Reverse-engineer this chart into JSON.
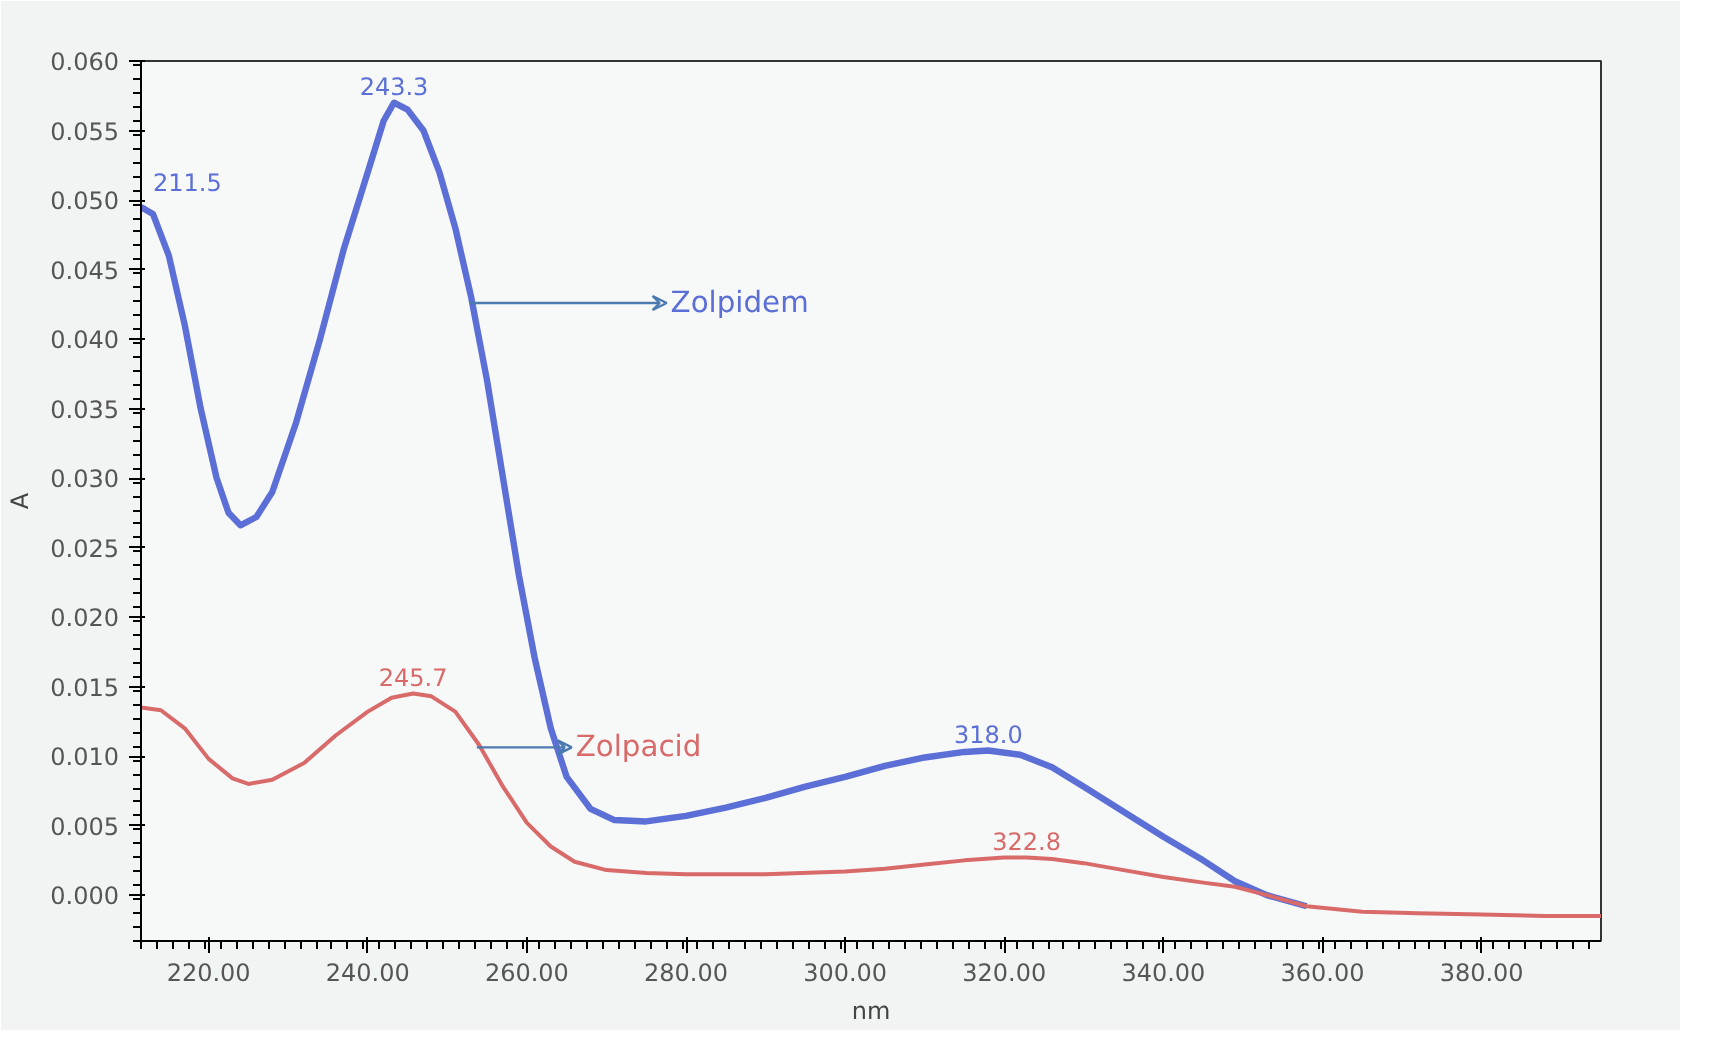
{
  "chart_data": {
    "type": "line",
    "xlabel": "nm",
    "ylabel": "A",
    "xlim": [
      211.5,
      395
    ],
    "ylim": [
      -0.0033,
      0.06
    ],
    "xticks": [
      {
        "value": 220,
        "label": "220.00"
      },
      {
        "value": 240,
        "label": "240.00"
      },
      {
        "value": 260,
        "label": "260.00"
      },
      {
        "value": 280,
        "label": "280.00"
      },
      {
        "value": 300,
        "label": "300.00"
      },
      {
        "value": 320,
        "label": "320.00"
      },
      {
        "value": 340,
        "label": "340.00"
      },
      {
        "value": 360,
        "label": "360.00"
      },
      {
        "value": 380,
        "label": "380.00"
      }
    ],
    "yticks": [
      {
        "value": 0,
        "label": "0.000"
      },
      {
        "value": 0.005,
        "label": "0.005"
      },
      {
        "value": 0.01,
        "label": "0.010"
      },
      {
        "value": 0.015,
        "label": "0.015"
      },
      {
        "value": 0.02,
        "label": "0.020"
      },
      {
        "value": 0.025,
        "label": "0.025"
      },
      {
        "value": 0.03,
        "label": "0.030"
      },
      {
        "value": 0.035,
        "label": "0.035"
      },
      {
        "value": 0.04,
        "label": "0.040"
      },
      {
        "value": 0.045,
        "label": "0.045"
      },
      {
        "value": 0.05,
        "label": "0.050"
      },
      {
        "value": 0.055,
        "label": "0.055"
      },
      {
        "value": 0.06,
        "label": "0.060"
      }
    ],
    "grid": false,
    "marker": "none",
    "line_style": "solid",
    "series": [
      {
        "name": "Zolpidem",
        "color": "#5b6fd6",
        "x": [
          211.5,
          213,
          215,
          217,
          219,
          221,
          222.5,
          224,
          226,
          228,
          231,
          234,
          237,
          240,
          242,
          243.3,
          245,
          247,
          249,
          251,
          253,
          255,
          257,
          259,
          261,
          263,
          265,
          268,
          271,
          275,
          280,
          285,
          290,
          295,
          300,
          305,
          310,
          315,
          318,
          322,
          326,
          330,
          335,
          340,
          345,
          349,
          353,
          358
        ],
        "values": [
          0.0495,
          0.049,
          0.046,
          0.041,
          0.035,
          0.03,
          0.0275,
          0.0266,
          0.0272,
          0.029,
          0.034,
          0.04,
          0.0465,
          0.052,
          0.0557,
          0.057,
          0.0565,
          0.055,
          0.052,
          0.048,
          0.043,
          0.037,
          0.03,
          0.023,
          0.017,
          0.012,
          0.0085,
          0.0062,
          0.0054,
          0.0053,
          0.0057,
          0.0063,
          0.007,
          0.0078,
          0.0085,
          0.0093,
          0.0099,
          0.0103,
          0.0104,
          0.0101,
          0.0092,
          0.0078,
          0.006,
          0.0042,
          0.0025,
          0.001,
          0.0,
          -0.0008
        ]
      },
      {
        "name": "Zolpacid",
        "color": "#d96a6a",
        "x": [
          211.5,
          214,
          217,
          220,
          223,
          225,
          228,
          232,
          236,
          240,
          243,
          245.7,
          248,
          251,
          254,
          257,
          260,
          263,
          266,
          270,
          275,
          280,
          290,
          300,
          305,
          310,
          315,
          320,
          322.8,
          326,
          330,
          335,
          340,
          345,
          349,
          353,
          358,
          365,
          372,
          380,
          388,
          395
        ],
        "values": [
          0.0135,
          0.0133,
          0.012,
          0.0098,
          0.0084,
          0.008,
          0.0083,
          0.0095,
          0.0115,
          0.0132,
          0.0142,
          0.0145,
          0.0143,
          0.0132,
          0.0108,
          0.0078,
          0.0052,
          0.0035,
          0.0024,
          0.0018,
          0.0016,
          0.0015,
          0.0015,
          0.0017,
          0.0019,
          0.0022,
          0.0025,
          0.0027,
          0.0027,
          0.0026,
          0.0023,
          0.0018,
          0.0013,
          0.0009,
          0.0006,
          0.0,
          -0.0008,
          -0.0012,
          -0.0013,
          -0.0014,
          -0.0015,
          -0.0015
        ]
      }
    ],
    "annotations": [
      {
        "text": "211.5",
        "x": 211.5,
        "y": 0.0495
      },
      {
        "text": "243.3",
        "x": 243.3,
        "y": 0.057
      },
      {
        "text": "318.0",
        "x": 318,
        "y": 0.0104
      },
      {
        "text": "245.7",
        "x": 245.7,
        "y": 0.0145
      },
      {
        "text": "322.8",
        "x": 322.8,
        "y": 0.0027
      }
    ]
  }
}
